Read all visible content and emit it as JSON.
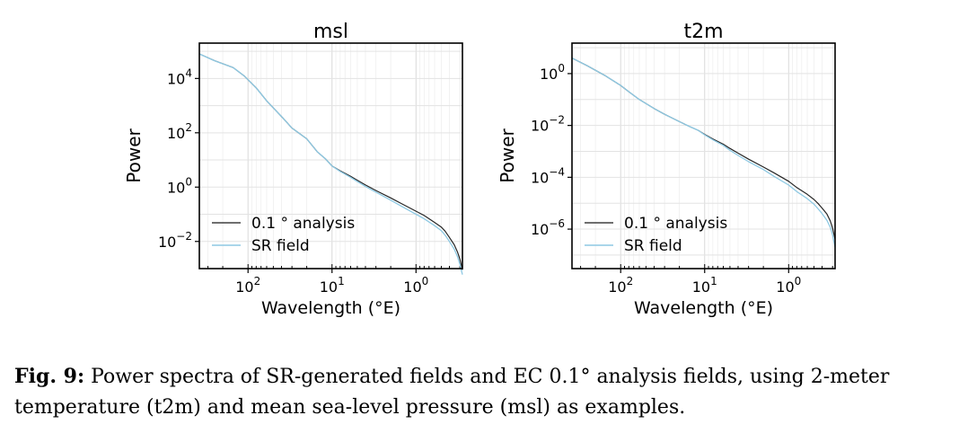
{
  "chart_data": [
    {
      "type": "line",
      "title": "msl",
      "xlabel": "Wavelength (°E)",
      "ylabel": "Power",
      "x_scale": "log-reversed",
      "y_scale": "log",
      "xlim": [
        380,
        0.28
      ],
      "ylim": [
        0.001,
        200000
      ],
      "xticks": [
        {
          "value": 100,
          "label": "10",
          "exp": "2"
        },
        {
          "value": 10,
          "label": "10",
          "exp": "1"
        },
        {
          "value": 1,
          "label": "10",
          "exp": "0"
        }
      ],
      "yticks": [
        {
          "value": 10000,
          "label": "10",
          "exp": "4"
        },
        {
          "value": 100,
          "label": "10",
          "exp": "2"
        },
        {
          "value": 1,
          "label": "10",
          "exp": "0"
        },
        {
          "value": 0.01,
          "label": "10",
          "exp": "−2"
        }
      ],
      "grid": true,
      "legend_position": "lower-left",
      "series": [
        {
          "name": "0.1 ° analysis",
          "color": "#000000",
          "x": [
            380,
            250,
            150,
            110,
            80,
            60,
            40,
            30,
            20,
            15,
            12,
            10,
            8,
            6,
            5,
            4,
            3,
            2,
            1.5,
            1,
            0.8,
            0.6,
            0.5,
            0.45,
            0.4,
            0.35,
            0.32,
            0.3,
            0.28
          ],
          "y": [
            80000,
            45000,
            25000,
            12000,
            4500,
            1500,
            400,
            150,
            60,
            20,
            11,
            6,
            4,
            2.5,
            1.8,
            1.2,
            0.75,
            0.4,
            0.25,
            0.13,
            0.09,
            0.05,
            0.034,
            0.024,
            0.014,
            0.0075,
            0.004,
            0.0022,
            0.0009
          ]
        },
        {
          "name": "SR field",
          "color": "#8ec9e3",
          "x": [
            380,
            250,
            150,
            110,
            80,
            60,
            40,
            30,
            20,
            15,
            12,
            10,
            8,
            6,
            5,
            4,
            3,
            2,
            1.5,
            1,
            0.8,
            0.6,
            0.5,
            0.45,
            0.4,
            0.35,
            0.32,
            0.3,
            0.28
          ],
          "y": [
            80000,
            45000,
            25000,
            12000,
            4500,
            1500,
            400,
            150,
            60,
            20,
            11,
            6,
            3.8,
            2.3,
            1.6,
            1.05,
            0.65,
            0.33,
            0.2,
            0.1,
            0.068,
            0.038,
            0.025,
            0.017,
            0.01,
            0.0052,
            0.0027,
            0.0014,
            0.0006
          ]
        }
      ]
    },
    {
      "type": "line",
      "title": "t2m",
      "xlabel": "Wavelength (°E)",
      "ylabel": "Power",
      "x_scale": "log-reversed",
      "y_scale": "log",
      "xlim": [
        380,
        0.28
      ],
      "ylim": [
        3e-08,
        15
      ],
      "xticks": [
        {
          "value": 100,
          "label": "10",
          "exp": "2"
        },
        {
          "value": 10,
          "label": "10",
          "exp": "1"
        },
        {
          "value": 1,
          "label": "10",
          "exp": "0"
        }
      ],
      "yticks": [
        {
          "value": 1,
          "label": "10",
          "exp": "0"
        },
        {
          "value": 0.01,
          "label": "10",
          "exp": "−2"
        },
        {
          "value": 0.0001,
          "label": "10",
          "exp": "−4"
        },
        {
          "value": 1e-06,
          "label": "10",
          "exp": "−6"
        }
      ],
      "grid": true,
      "legend_position": "lower-left",
      "series": [
        {
          "name": "0.1 ° analysis",
          "color": "#000000",
          "x": [
            380,
            250,
            150,
            100,
            80,
            60,
            40,
            30,
            20,
            15,
            12,
            10,
            8,
            6,
            5,
            4,
            3,
            2,
            1.5,
            1,
            0.8,
            0.6,
            0.5,
            0.45,
            0.4,
            0.35,
            0.32,
            0.3,
            0.28
          ],
          "y": [
            4,
            2,
            0.8,
            0.35,
            0.2,
            0.1,
            0.045,
            0.027,
            0.014,
            0.009,
            0.0065,
            0.0045,
            0.003,
            0.0019,
            0.0013,
            0.00085,
            0.0005,
            0.00025,
            0.00015,
            7e-05,
            4e-05,
            2.2e-05,
            1.4e-05,
            1e-05,
            6.5e-06,
            3.8e-06,
            2.1e-06,
            1.1e-06,
            4e-07
          ]
        },
        {
          "name": "SR field",
          "color": "#8ec9e3",
          "x": [
            380,
            250,
            150,
            100,
            80,
            60,
            40,
            30,
            20,
            15,
            12,
            10,
            8,
            6,
            5,
            4,
            3,
            2,
            1.5,
            1,
            0.8,
            0.6,
            0.5,
            0.45,
            0.4,
            0.35,
            0.32,
            0.3,
            0.28
          ],
          "y": [
            4,
            2,
            0.8,
            0.35,
            0.2,
            0.1,
            0.045,
            0.027,
            0.014,
            0.009,
            0.0065,
            0.0043,
            0.0028,
            0.0017,
            0.0011,
            0.0007,
            0.0004,
            0.0002,
            0.00011,
            5e-05,
            2.8e-05,
            1.5e-05,
            9.2e-06,
            6.3e-06,
            4e-06,
            2.2e-06,
            1.2e-06,
            6e-07,
            2e-07
          ]
        }
      ]
    }
  ],
  "caption": {
    "label": "Fig. 9:",
    "text": "Power spectra of SR-generated fields and EC 0.1° analysis fields, using 2-meter temperature (t2m) and mean sea-level pressure (msl) as examples."
  }
}
